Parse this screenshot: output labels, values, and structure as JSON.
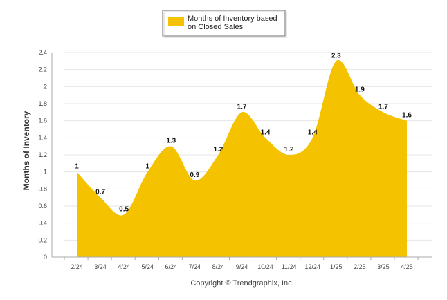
{
  "chart_data": {
    "type": "area",
    "categories": [
      "2/24",
      "3/24",
      "4/24",
      "5/24",
      "6/24",
      "7/24",
      "8/24",
      "9/24",
      "10/24",
      "11/24",
      "12/24",
      "1/25",
      "2/25",
      "3/25",
      "4/25"
    ],
    "series": [
      {
        "name": "Months of Inventory based on Closed Sales",
        "values": [
          1,
          0.7,
          0.5,
          1,
          1.3,
          0.9,
          1.2,
          1.7,
          1.4,
          1.2,
          1.4,
          2.3,
          1.9,
          1.7,
          1.6
        ]
      }
    ],
    "data_labels": [
      "1",
      "0.7",
      "0.5",
      "1",
      "1.3",
      "0.9",
      "1.2",
      "1.7",
      "1.4",
      "1.2",
      "1.4",
      "2.3",
      "1.9",
      "1.7",
      "1.6"
    ],
    "ylabel": "Months of Inventory",
    "xlabel": "",
    "ylim": [
      0,
      2.4
    ],
    "yticks": [
      "0",
      "0.2",
      "0.4",
      "0.6",
      "0.8",
      "1",
      "1.2",
      "1.4",
      "1.6",
      "1.8",
      "2",
      "2.2",
      "2.4"
    ],
    "grid": true,
    "legend_position": "top-center",
    "colors": {
      "series": "#F5C200",
      "grid": "#e6e6e6",
      "axis": "#aaaaaa"
    }
  },
  "legend": {
    "line1": "Months of Inventory based",
    "line2": "on Closed Sales"
  },
  "credit": "Copyright © Trendgraphix, Inc."
}
